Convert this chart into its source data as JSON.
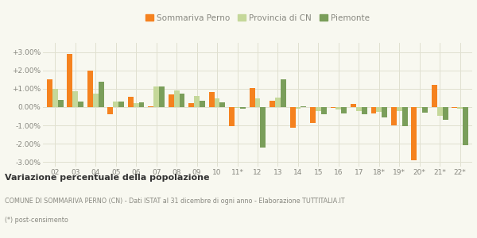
{
  "years": [
    "02",
    "03",
    "04",
    "05",
    "06",
    "07",
    "08",
    "09",
    "10",
    "11*",
    "12",
    "13",
    "14",
    "15",
    "16",
    "17",
    "18*",
    "19*",
    "20*",
    "21*",
    "22*"
  ],
  "sommariva": [
    1.5,
    2.9,
    2.0,
    -0.4,
    0.55,
    0.05,
    0.7,
    0.2,
    0.8,
    -1.05,
    1.05,
    0.35,
    -1.12,
    -0.85,
    -0.05,
    0.15,
    -0.35,
    -1.0,
    -2.9,
    1.2,
    -0.05
  ],
  "provincia": [
    1.0,
    0.85,
    0.75,
    0.3,
    0.2,
    1.1,
    0.9,
    0.6,
    0.45,
    -0.05,
    0.45,
    0.5,
    -0.1,
    -0.2,
    -0.15,
    -0.2,
    -0.25,
    -0.2,
    -0.05,
    -0.5,
    -0.1
  ],
  "piemonte": [
    0.4,
    0.3,
    1.4,
    0.3,
    0.25,
    1.1,
    0.75,
    0.35,
    0.25,
    -0.1,
    -2.2,
    1.5,
    0.05,
    -0.4,
    -0.35,
    -0.4,
    -0.55,
    -1.05,
    -0.3,
    -0.7,
    -2.1
  ],
  "color_sommariva": "#f5821f",
  "color_provincia": "#c5d89a",
  "color_piemonte": "#7a9e5a",
  "background": "#f8f8f0",
  "grid_color": "#e0e0d0",
  "title_bold": "Variazione percentuale della popolazione",
  "caption1": "COMUNE DI SOMMARIVA PERNO (CN) - Dati ISTAT al 31 dicembre di ogni anno - Elaborazione TUTTITALIA.IT",
  "caption2": "(*) post-censimento",
  "ylim": [
    -3.25,
    3.5
  ],
  "yticks": [
    -3.0,
    -2.0,
    -1.0,
    0.0,
    1.0,
    2.0,
    3.0
  ],
  "ytick_labels": [
    "-3.00%",
    "-2.00%",
    "-1.00%",
    "0.00%",
    "+1.00%",
    "+2.00%",
    "+3.00%"
  ],
  "bar_width": 0.27,
  "legend_labels": [
    "Sommariva Perno",
    "Provincia di CN",
    "Piemonte"
  ]
}
